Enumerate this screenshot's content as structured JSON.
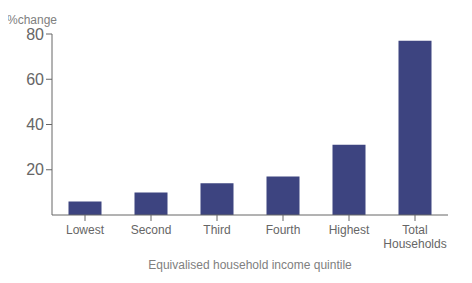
{
  "chart_data": {
    "type": "bar",
    "categories": [
      "Lowest",
      "Second",
      "Third",
      "Fourth",
      "Highest",
      "Total\nHouseholds"
    ],
    "values": [
      6,
      10,
      14,
      17,
      31,
      77
    ],
    "color": "#3d4480",
    "ylabel": "%change",
    "xlabel": "Equivalised household income quintile",
    "ylim": [
      0,
      80
    ],
    "yticks": [
      20,
      40,
      60,
      80
    ],
    "grid": false
  }
}
